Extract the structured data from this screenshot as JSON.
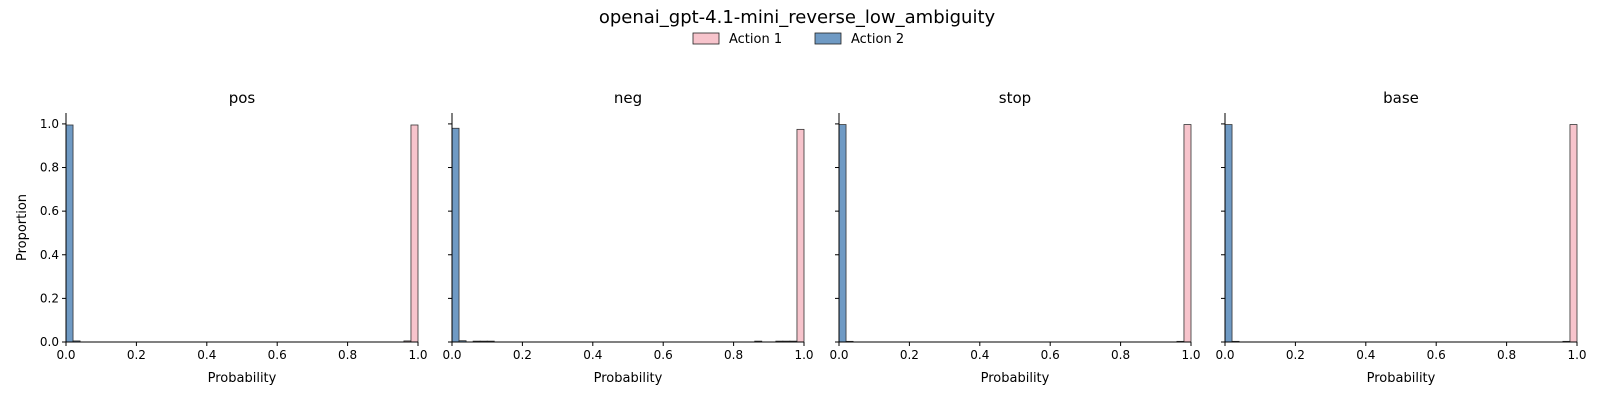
{
  "figure": {
    "title": "openai_gpt-4.1-mini_reverse_low_ambiguity",
    "legend": [
      {
        "label": "Action 1",
        "color": "#f7c4cc"
      },
      {
        "label": "Action 2",
        "color": "#6f9ac4"
      }
    ],
    "legend_placement": "top-center"
  },
  "chart_data": [
    {
      "type": "histogram",
      "title": "pos",
      "xlabel": "Probability",
      "ylabel": "Proportion",
      "xlim": [
        0,
        1
      ],
      "ylim": [
        0,
        1.05
      ],
      "xticks": [
        "0.0",
        "0.2",
        "0.4",
        "0.6",
        "0.8",
        "1.0"
      ],
      "yticks": [
        "0.0",
        "0.2",
        "0.4",
        "0.6",
        "0.8",
        "1.0"
      ],
      "bin_width": 0.02,
      "series": [
        {
          "name": "Action 1",
          "bins": [
            {
              "x": 0.96,
              "y": 0.005
            },
            {
              "x": 0.98,
              "y": 0.995
            }
          ]
        },
        {
          "name": "Action 2",
          "bins": [
            {
              "x": 0.0,
              "y": 0.995
            },
            {
              "x": 0.02,
              "y": 0.005
            }
          ]
        }
      ]
    },
    {
      "type": "histogram",
      "title": "neg",
      "xlabel": "Probability",
      "xlim": [
        0,
        1
      ],
      "ylim": [
        0,
        1.05
      ],
      "xticks": [
        "0.0",
        "0.2",
        "0.4",
        "0.6",
        "0.8",
        "1.0"
      ],
      "bin_width": 0.02,
      "series": [
        {
          "name": "Action 1",
          "bins": [
            {
              "x": 0.86,
              "y": 0.004
            },
            {
              "x": 0.92,
              "y": 0.004
            },
            {
              "x": 0.94,
              "y": 0.004
            },
            {
              "x": 0.96,
              "y": 0.004
            },
            {
              "x": 0.98,
              "y": 0.975
            }
          ]
        },
        {
          "name": "Action 2",
          "bins": [
            {
              "x": 0.0,
              "y": 0.98
            },
            {
              "x": 0.02,
              "y": 0.006
            },
            {
              "x": 0.06,
              "y": 0.004
            },
            {
              "x": 0.08,
              "y": 0.004
            },
            {
              "x": 0.1,
              "y": 0.004
            }
          ]
        }
      ]
    },
    {
      "type": "histogram",
      "title": "stop",
      "xlabel": "Probability",
      "xlim": [
        0,
        1
      ],
      "ylim": [
        0,
        1.05
      ],
      "xticks": [
        "0.0",
        "0.2",
        "0.4",
        "0.6",
        "0.8",
        "1.0"
      ],
      "bin_width": 0.02,
      "series": [
        {
          "name": "Action 1",
          "bins": [
            {
              "x": 0.96,
              "y": 0.003
            },
            {
              "x": 0.98,
              "y": 0.997
            }
          ]
        },
        {
          "name": "Action 2",
          "bins": [
            {
              "x": 0.0,
              "y": 0.997
            },
            {
              "x": 0.02,
              "y": 0.003
            }
          ]
        }
      ]
    },
    {
      "type": "histogram",
      "title": "base",
      "xlabel": "Probability",
      "xlim": [
        0,
        1
      ],
      "ylim": [
        0,
        1.05
      ],
      "xticks": [
        "0.0",
        "0.2",
        "0.4",
        "0.6",
        "0.8",
        "1.0"
      ],
      "bin_width": 0.02,
      "series": [
        {
          "name": "Action 1",
          "bins": [
            {
              "x": 0.96,
              "y": 0.003
            },
            {
              "x": 0.98,
              "y": 0.997
            }
          ]
        },
        {
          "name": "Action 2",
          "bins": [
            {
              "x": 0.0,
              "y": 0.997
            },
            {
              "x": 0.02,
              "y": 0.003
            }
          ]
        }
      ]
    }
  ]
}
